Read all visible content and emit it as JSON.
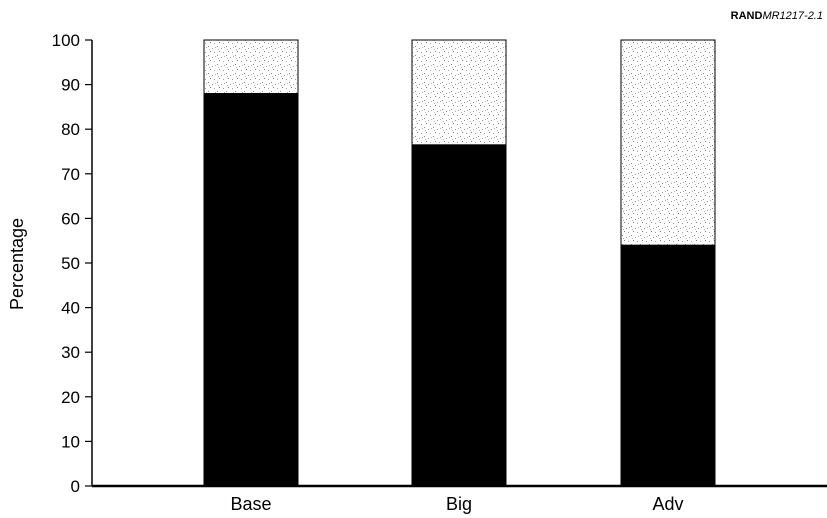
{
  "figure_id": {
    "prefix": "RAND",
    "number": "MR1217-2.1"
  },
  "chart_data": {
    "type": "bar",
    "stacked": true,
    "categories": [
      "Base",
      "Big",
      "Adv"
    ],
    "series": [
      {
        "values": [
          88,
          76.5,
          54
        ],
        "color": "#000000",
        "fill": "solid"
      },
      {
        "values": [
          12,
          23.5,
          46
        ],
        "color": "#d9d9d9",
        "fill": "stippled"
      }
    ],
    "ylabel": "Percentage",
    "xlabel": "",
    "ylim": [
      0,
      100
    ],
    "yticks": [
      0,
      10,
      20,
      30,
      40,
      50,
      60,
      70,
      80,
      90,
      100
    ],
    "grid": false,
    "legend": "none"
  }
}
